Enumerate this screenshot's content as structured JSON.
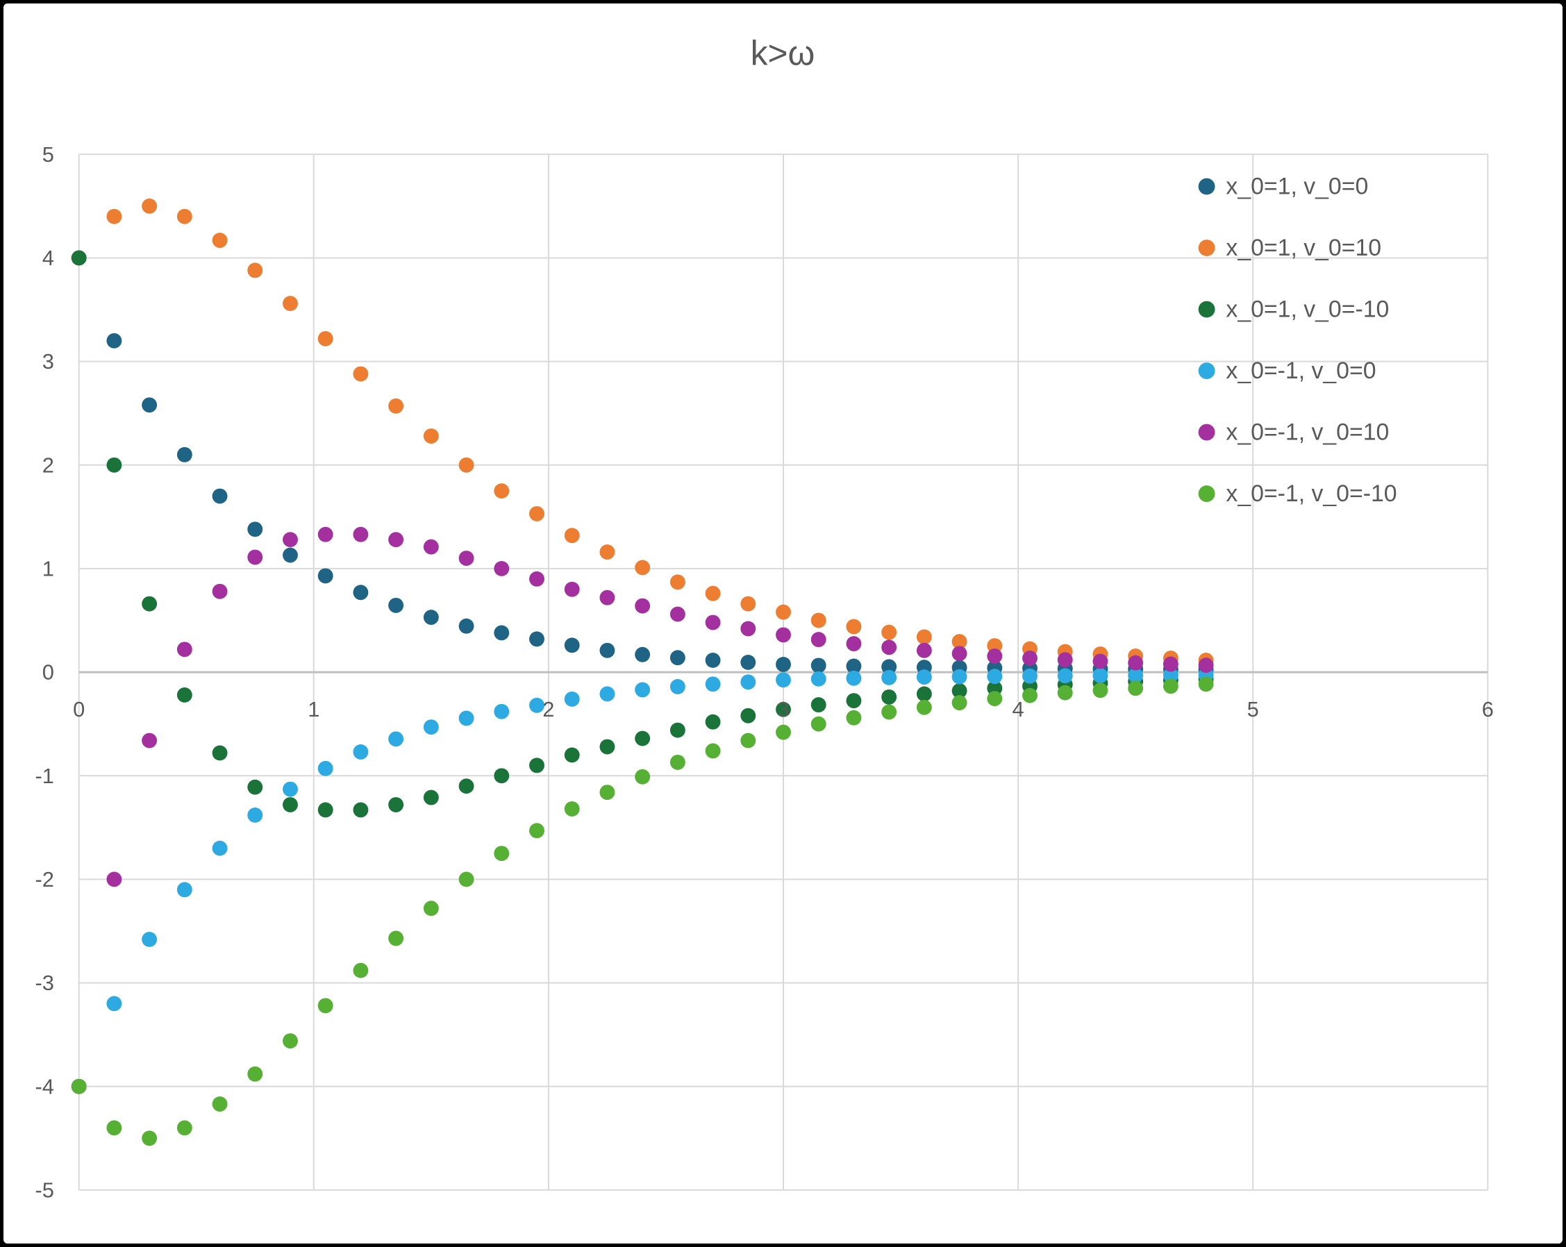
{
  "chart_data": {
    "type": "scatter",
    "title": "k>ω",
    "xlabel": "",
    "ylabel": "",
    "xlim": [
      0,
      6
    ],
    "ylim": [
      -5,
      5
    ],
    "x_ticks": [
      0,
      1,
      2,
      3,
      4,
      5,
      6
    ],
    "y_ticks": [
      5,
      4,
      3,
      2,
      1,
      0,
      -1,
      -2,
      -3,
      -4,
      -5
    ],
    "grid": true,
    "legend_position": "right-inside",
    "marker": "circle",
    "x": [
      0,
      0.15,
      0.3,
      0.45,
      0.6,
      0.75,
      0.9,
      1.05,
      1.2,
      1.35,
      1.5,
      1.65,
      1.8,
      1.95,
      2.1,
      2.25,
      2.4,
      2.55,
      2.7,
      2.85,
      3,
      3.15,
      3.3,
      3.45,
      3.6,
      3.75,
      3.9,
      4.05,
      4.2,
      4.35,
      4.5,
      4.65,
      4.8
    ],
    "series": [
      {
        "name": "x_0=1, v_0=0",
        "color": "#1F6385",
        "values": [
          4,
          3.2,
          2.58,
          2.1,
          1.7,
          1.38,
          1.13,
          0.93,
          0.77,
          0.645,
          0.53,
          0.445,
          0.38,
          0.32,
          0.26,
          0.21,
          0.17,
          0.14,
          0.115,
          0.095,
          0.075,
          0.065,
          0.058,
          0.052,
          0.047,
          0.044,
          0.041,
          0.038,
          0.035,
          0.033,
          0.031,
          0.029,
          0.027
        ]
      },
      {
        "name": "x_0=1, v_0=10",
        "color": "#ED7D31",
        "values": [
          4,
          4.4,
          4.5,
          4.4,
          4.17,
          3.88,
          3.56,
          3.22,
          2.88,
          2.57,
          2.28,
          2,
          1.75,
          1.53,
          1.32,
          1.16,
          1.01,
          0.87,
          0.76,
          0.66,
          0.58,
          0.5,
          0.44,
          0.385,
          0.34,
          0.295,
          0.255,
          0.225,
          0.198,
          0.175,
          0.155,
          0.135,
          0.115
        ]
      },
      {
        "name": "x_0=1, v_0=-10",
        "color": "#1A7339",
        "values": [
          4,
          2,
          0.66,
          -0.22,
          -0.78,
          -1.11,
          -1.28,
          -1.33,
          -1.33,
          -1.28,
          -1.21,
          -1.1,
          -1,
          -0.9,
          -0.8,
          -0.72,
          -0.64,
          -0.56,
          -0.48,
          -0.42,
          -0.36,
          -0.315,
          -0.275,
          -0.24,
          -0.21,
          -0.18,
          -0.155,
          -0.135,
          -0.12,
          -0.105,
          -0.09,
          -0.078,
          -0.067
        ]
      },
      {
        "name": "x_0=-1, v_0=0",
        "color": "#2CAAE1",
        "values": [
          -4,
          -3.2,
          -2.58,
          -2.1,
          -1.7,
          -1.38,
          -1.13,
          -0.93,
          -0.77,
          -0.645,
          -0.53,
          -0.445,
          -0.38,
          -0.32,
          -0.26,
          -0.21,
          -0.17,
          -0.14,
          -0.115,
          -0.095,
          -0.075,
          -0.065,
          -0.058,
          -0.052,
          -0.047,
          -0.044,
          -0.041,
          -0.038,
          -0.035,
          -0.033,
          -0.031,
          -0.029,
          -0.027
        ]
      },
      {
        "name": "x_0=-1, v_0=10",
        "color": "#A3309E",
        "values": [
          -4,
          -2,
          -0.66,
          0.22,
          0.78,
          1.11,
          1.28,
          1.33,
          1.33,
          1.28,
          1.21,
          1.1,
          1,
          0.9,
          0.8,
          0.72,
          0.64,
          0.56,
          0.48,
          0.42,
          0.36,
          0.315,
          0.275,
          0.24,
          0.21,
          0.18,
          0.155,
          0.135,
          0.12,
          0.105,
          0.09,
          0.078,
          0.067
        ]
      },
      {
        "name": "x_0=-1, v_0=-10",
        "color": "#55B034",
        "values": [
          -4,
          -4.4,
          -4.5,
          -4.4,
          -4.17,
          -3.88,
          -3.56,
          -3.22,
          -2.88,
          -2.57,
          -2.28,
          -2,
          -1.75,
          -1.53,
          -1.32,
          -1.16,
          -1.01,
          -0.87,
          -0.76,
          -0.66,
          -0.58,
          -0.5,
          -0.44,
          -0.385,
          -0.34,
          -0.295,
          -0.255,
          -0.225,
          -0.198,
          -0.175,
          -0.155,
          -0.135,
          -0.115
        ]
      }
    ],
    "colors": {
      "background": "#FFFFFF",
      "gridline": "#D9D9D9",
      "zero_axis_line": "#BFBFBF",
      "text": "#595959"
    }
  }
}
